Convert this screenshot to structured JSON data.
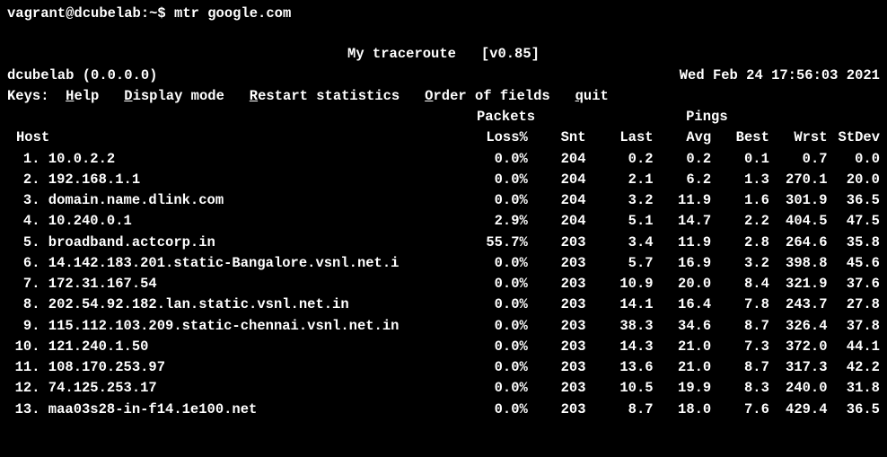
{
  "prompt": "vagrant@dcubelab:~$ mtr google.com",
  "title": "My traceroute   [v0.85]",
  "hostline_left": "dcubelab (0.0.0.0)",
  "hostline_right": "Wed Feb 24 17:56:03 2021",
  "keys": {
    "label": "Keys:",
    "help": {
      "key": "H",
      "rest": "elp"
    },
    "display": {
      "key": "D",
      "rest": "isplay mode"
    },
    "restart": {
      "key": "R",
      "rest": "estart statistics"
    },
    "order": {
      "key": "O",
      "rest": "rder of fields"
    },
    "quit": {
      "key": "q",
      "rest": "uit"
    }
  },
  "section_packets": "Packets",
  "section_pings": "Pings",
  "columns": {
    "host": "Host",
    "loss": "Loss%",
    "snt": "Snt",
    "last": "Last",
    "avg": "Avg",
    "best": "Best",
    "wrst": "Wrst",
    "stdev": "StDev"
  },
  "rows": [
    {
      "n": " 1.",
      "host": "10.0.2.2",
      "loss": "0.0%",
      "snt": "204",
      "last": "0.2",
      "avg": "0.2",
      "best": "0.1",
      "wrst": "0.7",
      "stdev": "0.0"
    },
    {
      "n": " 2.",
      "host": "192.168.1.1",
      "loss": "0.0%",
      "snt": "204",
      "last": "2.1",
      "avg": "6.2",
      "best": "1.3",
      "wrst": "270.1",
      "stdev": "20.0"
    },
    {
      "n": " 3.",
      "host": "domain.name.dlink.com",
      "loss": "0.0%",
      "snt": "204",
      "last": "3.2",
      "avg": "11.9",
      "best": "1.6",
      "wrst": "301.9",
      "stdev": "36.5"
    },
    {
      "n": " 4.",
      "host": "10.240.0.1",
      "loss": "2.9%",
      "snt": "204",
      "last": "5.1",
      "avg": "14.7",
      "best": "2.2",
      "wrst": "404.5",
      "stdev": "47.5"
    },
    {
      "n": " 5.",
      "host": "broadband.actcorp.in",
      "loss": "55.7%",
      "snt": "203",
      "last": "3.4",
      "avg": "11.9",
      "best": "2.8",
      "wrst": "264.6",
      "stdev": "35.8"
    },
    {
      "n": " 6.",
      "host": "14.142.183.201.static-Bangalore.vsnl.net.i",
      "loss": "0.0%",
      "snt": "203",
      "last": "5.7",
      "avg": "16.9",
      "best": "3.2",
      "wrst": "398.8",
      "stdev": "45.6"
    },
    {
      "n": " 7.",
      "host": "172.31.167.54",
      "loss": "0.0%",
      "snt": "203",
      "last": "10.9",
      "avg": "20.0",
      "best": "8.4",
      "wrst": "321.9",
      "stdev": "37.6"
    },
    {
      "n": " 8.",
      "host": "202.54.92.182.lan.static.vsnl.net.in",
      "loss": "0.0%",
      "snt": "203",
      "last": "14.1",
      "avg": "16.4",
      "best": "7.8",
      "wrst": "243.7",
      "stdev": "27.8"
    },
    {
      "n": " 9.",
      "host": "115.112.103.209.static-chennai.vsnl.net.in",
      "loss": "0.0%",
      "snt": "203",
      "last": "38.3",
      "avg": "34.6",
      "best": "8.7",
      "wrst": "326.4",
      "stdev": "37.8"
    },
    {
      "n": "10.",
      "host": "121.240.1.50",
      "loss": "0.0%",
      "snt": "203",
      "last": "14.3",
      "avg": "21.0",
      "best": "7.3",
      "wrst": "372.0",
      "stdev": "44.1"
    },
    {
      "n": "11.",
      "host": "108.170.253.97",
      "loss": "0.0%",
      "snt": "203",
      "last": "13.6",
      "avg": "21.0",
      "best": "8.7",
      "wrst": "317.3",
      "stdev": "42.2"
    },
    {
      "n": "12.",
      "host": "74.125.253.17",
      "loss": "0.0%",
      "snt": "203",
      "last": "10.5",
      "avg": "19.9",
      "best": "8.3",
      "wrst": "240.0",
      "stdev": "31.8"
    },
    {
      "n": "13.",
      "host": "maa03s28-in-f14.1e100.net",
      "loss": "0.0%",
      "snt": "203",
      "last": "8.7",
      "avg": "18.0",
      "best": "7.6",
      "wrst": "429.4",
      "stdev": "36.5"
    }
  ]
}
